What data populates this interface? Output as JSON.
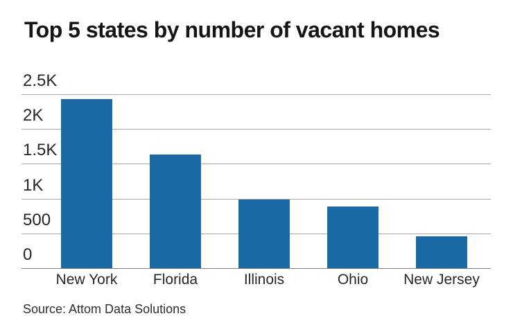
{
  "title": "Top 5 states by number of vacant homes",
  "source": {
    "text": "Source: Attom Data Solutions"
  },
  "colors": {
    "bar_fill": "#1b69a5",
    "gridline": "#a9a9a9",
    "axis_line": "#7d7d7d",
    "title_text": "#151515",
    "tick_text": "#262626",
    "source_text": "#2e2e2e",
    "background": "#ffffff"
  },
  "chart_data": {
    "type": "bar",
    "title": "Top 5 states by number of vacant homes",
    "categories": [
      "New York",
      "Florida",
      "Illinois",
      "Ohio",
      "New Jersey"
    ],
    "values": [
      2428,
      1634,
      985,
      891,
      463
    ],
    "xlabel": "",
    "ylabel": "",
    "ylim": [
      0,
      2500
    ],
    "ytick_interval": 500,
    "ytick_labels": [
      "0",
      "500",
      "1K",
      "1.5K",
      "2K",
      "2.5K"
    ],
    "grid": "horizontal-only",
    "legend": "none",
    "source": "Source: Attom Data Solutions"
  }
}
